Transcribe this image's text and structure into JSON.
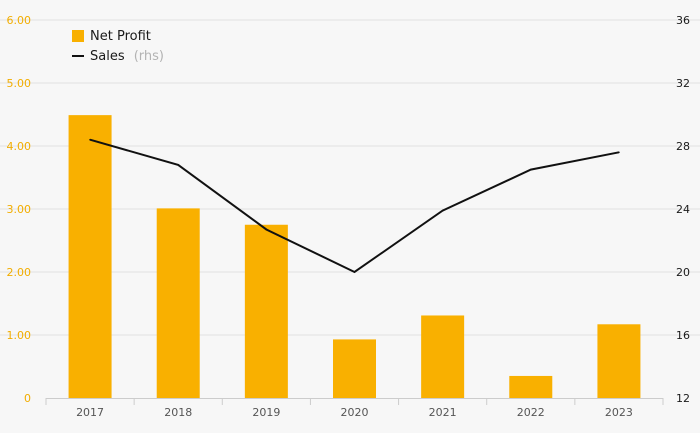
{
  "chart_data": {
    "type": "bar",
    "categories": [
      "2017",
      "2018",
      "2019",
      "2020",
      "2021",
      "2022",
      "2023"
    ],
    "series": [
      {
        "name": "Net Profit",
        "type": "bar",
        "axis": "left",
        "values": [
          4.49,
          3.01,
          2.75,
          0.93,
          1.31,
          0.35,
          1.17
        ]
      },
      {
        "name": "Sales",
        "name_suffix": "(rhs)",
        "type": "line",
        "axis": "right",
        "values": [
          28.4,
          26.8,
          22.7,
          20.0,
          23.9,
          26.5,
          27.6
        ]
      }
    ],
    "y_left": {
      "ylim": [
        0,
        6
      ],
      "ticks": [
        0,
        1,
        2,
        3,
        4,
        5,
        6
      ],
      "tick_labels": [
        "0",
        "1.00",
        "2.00",
        "3.00",
        "4.00",
        "5.00",
        "6.00"
      ]
    },
    "y_right": {
      "ylim": [
        12,
        36
      ],
      "ticks": [
        12,
        16,
        20,
        24,
        28,
        32,
        36
      ],
      "tick_labels": [
        "12",
        "16",
        "20",
        "24",
        "28",
        "32",
        "36"
      ]
    },
    "grid": true,
    "legend_position": "top-left",
    "colors": {
      "bar": "#f9b000",
      "line": "#111111",
      "left_axis_text": "#f2ad00",
      "grid": "#e2e2e2",
      "background": "#f7f7f7"
    }
  }
}
